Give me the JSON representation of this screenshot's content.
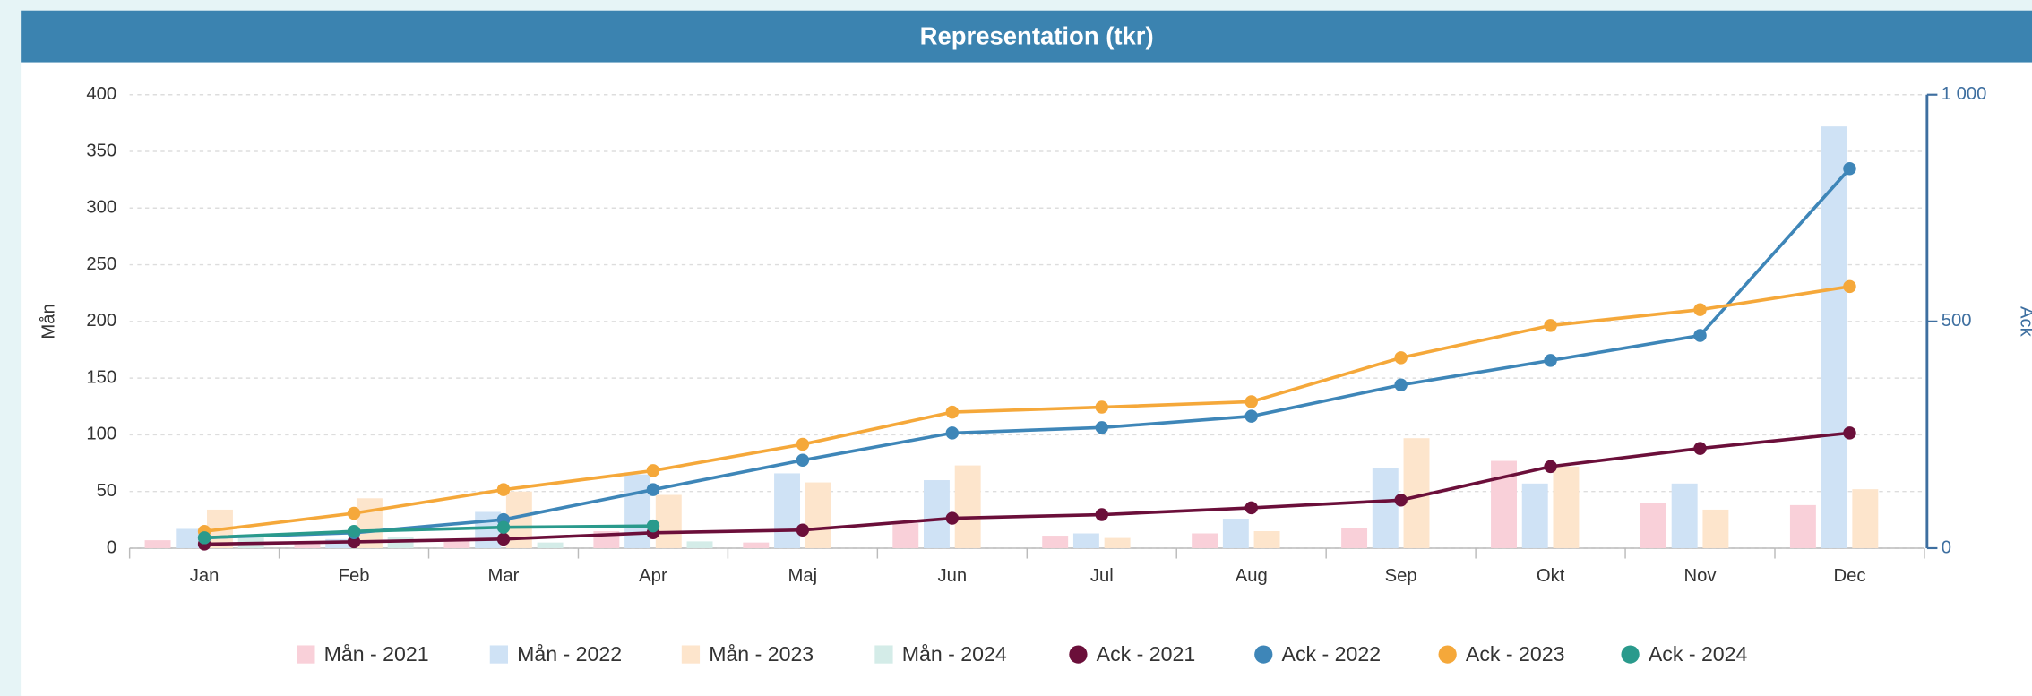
{
  "chart_data": {
    "type": "bar_line",
    "title": "Representation (tkr)",
    "ylabel": "Mån",
    "y2label": "Ack",
    "categories": [
      "Jan",
      "Feb",
      "Mar",
      "Apr",
      "Maj",
      "Jun",
      "Jul",
      "Aug",
      "Sep",
      "Okt",
      "Nov",
      "Dec"
    ],
    "ylim": [
      0,
      400
    ],
    "yticks": [
      0,
      50,
      100,
      150,
      200,
      250,
      300,
      350,
      400
    ],
    "y2lim": [
      0,
      1000
    ],
    "y2ticks": [
      0,
      500,
      {
        "value": 1000,
        "label": "1 000"
      }
    ],
    "grid": true,
    "legend": "bottom",
    "series": [
      {
        "name": "Mån - 2021",
        "type": "bar",
        "color": "#f9d0d9",
        "values": [
          7,
          5,
          8,
          15,
          5,
          22,
          11,
          13,
          18,
          77,
          40,
          38
        ]
      },
      {
        "name": "Mån - 2022",
        "type": "bar",
        "color": "#cfe2f5",
        "values": [
          17,
          8,
          32,
          65,
          66,
          60,
          13,
          26,
          71,
          57,
          57,
          372
        ]
      },
      {
        "name": "Mån - 2023",
        "type": "bar",
        "color": "#fde5cc",
        "values": [
          34,
          44,
          50,
          47,
          58,
          73,
          9,
          15,
          97,
          72,
          34,
          52
        ]
      },
      {
        "name": "Mån - 2024",
        "type": "bar",
        "color": "#d4ece8",
        "values": [
          10,
          10,
          5,
          6,
          null,
          null,
          null,
          null,
          null,
          null,
          null,
          null
        ]
      },
      {
        "name": "Ack - 2021",
        "type": "line",
        "axis": "y2",
        "color": "#6b0f3a",
        "values": [
          9,
          14,
          20,
          34,
          40,
          66,
          74,
          89,
          106,
          180,
          220,
          254
        ]
      },
      {
        "name": "Ack - 2022",
        "type": "line",
        "axis": "y2",
        "color": "#3e86b8",
        "values": [
          23,
          34,
          63,
          129,
          194,
          254,
          266,
          291,
          360,
          414,
          469,
          837
        ]
      },
      {
        "name": "Ack - 2023",
        "type": "line",
        "axis": "y2",
        "color": "#f5a83a",
        "values": [
          37,
          77,
          129,
          171,
          229,
          300,
          311,
          323,
          420,
          491,
          526,
          577
        ]
      },
      {
        "name": "Ack - 2024",
        "type": "line",
        "axis": "y2",
        "color": "#2a9a8c",
        "values": [
          23,
          37,
          46,
          49,
          null,
          null,
          null,
          null,
          null,
          null,
          null,
          null
        ]
      }
    ]
  }
}
